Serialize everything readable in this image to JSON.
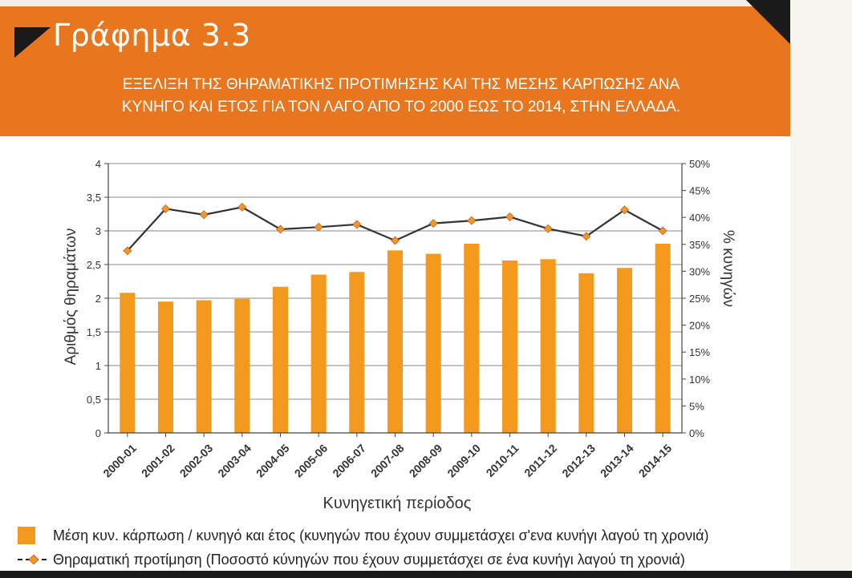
{
  "header": {
    "graph_title": "Γράφημα 3.3",
    "subtitle_line1": "ΕΞΕΛΙΞΗ ΤΗΣ ΘΗΡΑΜΑΤΙΚΗΣ ΠΡΟΤΙΜΗΣΗΣ ΚΑΙ ΤΗΣ ΜΕΣΗΣ ΚΑΡΠΩΣΗΣ ΑΝΑ",
    "subtitle_line2": "ΚΥΝΗΓΟ ΚΑΙ ΕΤΟΣ ΓΙΑ ΤΟΝ ΛΑΓΟ ΑΠΟ ΤΟ 2000 ΕΩΣ ΤΟ 2014, ΣΤΗΝ ΕΛΛΑΔΑ."
  },
  "colors": {
    "header_band": "#e8761f",
    "bar": "#f39a1e",
    "line": "#333333",
    "marker": "#f39a1e"
  },
  "chart_data": {
    "type": "bar",
    "categories": [
      "2000-01",
      "2001-02",
      "2002-03",
      "2003-04",
      "2004-05",
      "2005-06",
      "2006-07",
      "2007-08",
      "2008-09",
      "2009-10",
      "2010-11",
      "2011-12",
      "2012-13",
      "2013-14",
      "2014-15"
    ],
    "series": [
      {
        "name": "Μέση κυν. κάρπωση / κυνηγό και έτος (κυνηγών που έχουν συμμετάσχει σ'ενα κυνήγι λαγού τη χρονιά)",
        "type": "bar",
        "axis": "left",
        "values": [
          2.08,
          1.95,
          1.97,
          1.99,
          2.17,
          2.35,
          2.39,
          2.71,
          2.66,
          2.81,
          2.56,
          2.58,
          2.37,
          2.45,
          2.81
        ]
      },
      {
        "name": "Θηραματική προτίμηση (Ποσοστό κύνηγών που έχουν συμμετάσχει σε ένα κυνήγι λαγού τη χρονιά)",
        "type": "line",
        "axis": "right",
        "values": [
          33.8,
          41.6,
          40.5,
          41.9,
          37.8,
          38.2,
          38.7,
          35.7,
          38.9,
          39.4,
          40.1,
          37.9,
          36.5,
          41.4,
          37.5
        ]
      }
    ],
    "xlabel": "Κυνηγετική περίοδος",
    "ylabel": "Αριθμός θηραμάτων",
    "y2label": "% κυνηγών",
    "ylim": [
      0,
      4
    ],
    "y2lim": [
      0,
      50
    ],
    "yticks": [
      "0",
      "0,5",
      "1",
      "1,5",
      "2",
      "2,5",
      "3",
      "3,5",
      "4"
    ],
    "y2ticks": [
      "0%",
      "5%",
      "10%",
      "15%",
      "20%",
      "25%",
      "30%",
      "35%",
      "40%",
      "45%",
      "50%"
    ],
    "grid": true,
    "legend_position": "bottom"
  }
}
